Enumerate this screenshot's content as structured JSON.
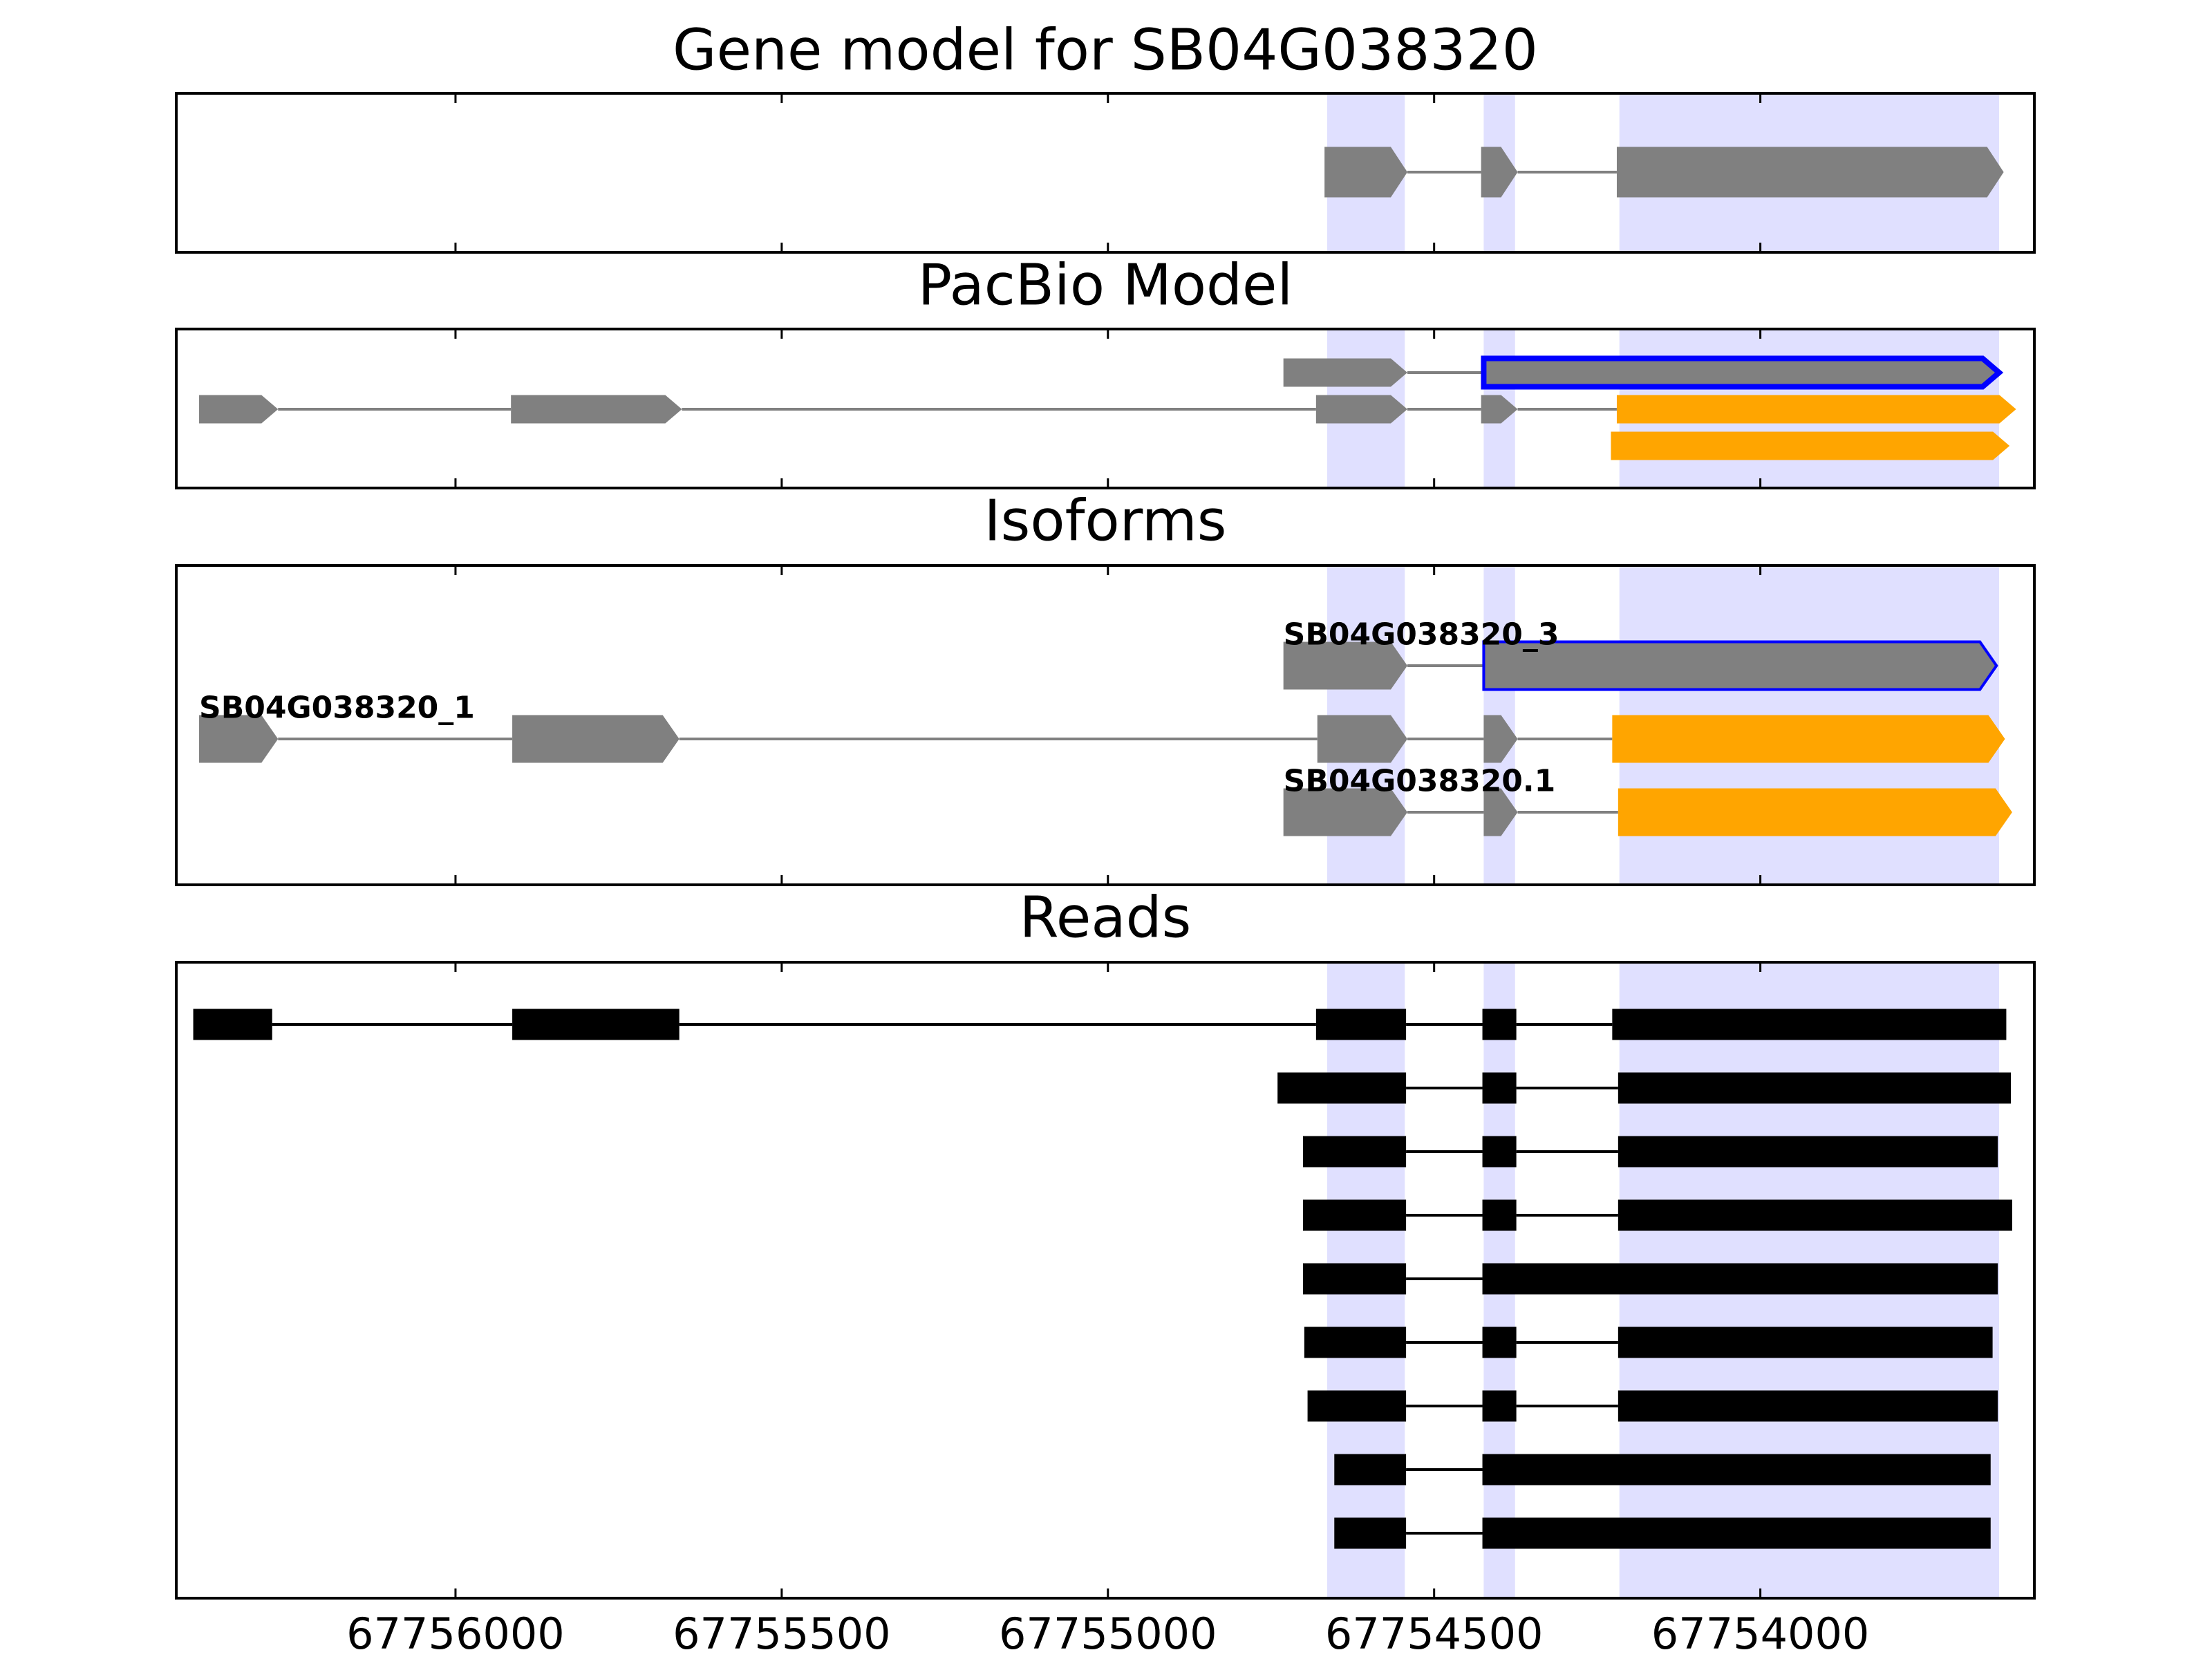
{
  "chart_data": {
    "type": "gene-model",
    "xlim": [
      67756428,
      67753580
    ],
    "xticks": [
      67756000,
      67755500,
      67755000,
      67754500,
      67754000
    ],
    "highlight_color": "#e0e0ff",
    "highlights": [
      [
        67754664,
        67754545
      ],
      [
        67754424,
        67754376
      ],
      [
        67754216,
        67753634
      ]
    ],
    "panels": [
      {
        "title": "Gene model for SB04G038320",
        "shape": "arrow",
        "intron_color": "#808080",
        "tracks": [
          {
            "exons": [
              {
                "range": [
                  67754668,
                  67754541
                ],
                "fill": "#808080"
              },
              {
                "range": [
                  67754428,
                  67754372
                ],
                "fill": "#808080"
              },
              {
                "range": [
                  67754220,
                  67753627
                ],
                "fill": "#808080"
              }
            ]
          }
        ]
      },
      {
        "title": "PacBio Model",
        "shape": "arrow",
        "intron_color": "#808080",
        "tracks": [
          {
            "exons": [
              {
                "range": [
                  67754731,
                  67754541
                ],
                "fill": "#808080"
              },
              {
                "range": [
                  67754424,
                  67753634
                ],
                "fill": "#808080",
                "edge": "#0000ff"
              }
            ]
          },
          {
            "exons": [
              {
                "range": [
                  67756393,
                  67756272
                ],
                "fill": "#808080"
              },
              {
                "range": [
                  67755915,
                  67755653
                ],
                "fill": "#808080"
              },
              {
                "range": [
                  67754681,
                  67754541
                ],
                "fill": "#808080"
              },
              {
                "range": [
                  67754428,
                  67754372
                ],
                "fill": "#808080"
              },
              {
                "range": [
                  67754220,
                  67753608
                ],
                "fill": "#ffa500"
              }
            ]
          },
          {
            "exons": [
              {
                "range": [
                  67754229,
                  67753618
                ],
                "fill": "#ffa500"
              }
            ]
          }
        ]
      },
      {
        "title": "Isoforms",
        "shape": "arrow",
        "intron_color": "#808080",
        "tracks": [
          {
            "label": "SB04G038320_3",
            "exons": [
              {
                "range": [
                  67754731,
                  67754541
                ],
                "fill": "#808080"
              },
              {
                "range": [
                  67754424,
                  67753638
                ],
                "fill": "#808080",
                "edge": "#0000ff"
              }
            ]
          },
          {
            "label": "SB04G038320_1",
            "exons": [
              {
                "range": [
                  67756393,
                  67756272
                ],
                "fill": "#808080"
              },
              {
                "range": [
                  67755913,
                  67755657
                ],
                "fill": "#808080"
              },
              {
                "range": [
                  67754679,
                  67754541
                ],
                "fill": "#808080"
              },
              {
                "range": [
                  67754424,
                  67754372
                ],
                "fill": "#808080"
              },
              {
                "range": [
                  67754227,
                  67753625
                ],
                "fill": "#ffa500"
              }
            ]
          },
          {
            "label": "SB04G038320.1",
            "exons": [
              {
                "range": [
                  67754731,
                  67754541
                ],
                "fill": "#808080"
              },
              {
                "range": [
                  67754424,
                  67754372
                ],
                "fill": "#808080"
              },
              {
                "range": [
                  67754218,
                  67753614
                ],
                "fill": "#ffa500"
              }
            ]
          }
        ]
      },
      {
        "title": "Reads",
        "shape": "box",
        "intron_color": "#000000",
        "tracks": [
          {
            "exons": [
              {
                "range": [
                  67756402,
                  67756281
                ],
                "fill": "#000000"
              },
              {
                "range": [
                  67755913,
                  67755657
                ],
                "fill": "#000000"
              },
              {
                "range": [
                  67754681,
                  67754543
                ],
                "fill": "#000000"
              },
              {
                "range": [
                  67754426,
                  67754374
                ],
                "fill": "#000000"
              },
              {
                "range": [
                  67754227,
                  67753623
                ],
                "fill": "#000000"
              }
            ]
          },
          {
            "exons": [
              {
                "range": [
                  67754740,
                  67754543
                ],
                "fill": "#000000"
              },
              {
                "range": [
                  67754426,
                  67754374
                ],
                "fill": "#000000"
              },
              {
                "range": [
                  67754218,
                  67753616
                ],
                "fill": "#000000"
              }
            ]
          },
          {
            "exons": [
              {
                "range": [
                  67754701,
                  67754543
                ],
                "fill": "#000000"
              },
              {
                "range": [
                  67754426,
                  67754374
                ],
                "fill": "#000000"
              },
              {
                "range": [
                  67754218,
                  67753636
                ],
                "fill": "#000000"
              }
            ]
          },
          {
            "exons": [
              {
                "range": [
                  67754701,
                  67754543
                ],
                "fill": "#000000"
              },
              {
                "range": [
                  67754426,
                  67754374
                ],
                "fill": "#000000"
              },
              {
                "range": [
                  67754218,
                  67753614
                ],
                "fill": "#000000"
              }
            ]
          },
          {
            "exons": [
              {
                "range": [
                  67754701,
                  67754543
                ],
                "fill": "#000000"
              },
              {
                "range": [
                  67754426,
                  67753636
                ],
                "fill": "#000000"
              }
            ]
          },
          {
            "exons": [
              {
                "range": [
                  67754699,
                  67754543
                ],
                "fill": "#000000"
              },
              {
                "range": [
                  67754426,
                  67754374
                ],
                "fill": "#000000"
              },
              {
                "range": [
                  67754218,
                  67753644
                ],
                "fill": "#000000"
              }
            ]
          },
          {
            "exons": [
              {
                "range": [
                  67754694,
                  67754543
                ],
                "fill": "#000000"
              },
              {
                "range": [
                  67754426,
                  67754374
                ],
                "fill": "#000000"
              },
              {
                "range": [
                  67754218,
                  67753636
                ],
                "fill": "#000000"
              }
            ]
          },
          {
            "exons": [
              {
                "range": [
                  67754653,
                  67754543
                ],
                "fill": "#000000"
              },
              {
                "range": [
                  67754426,
                  67753647
                ],
                "fill": "#000000"
              }
            ]
          },
          {
            "exons": [
              {
                "range": [
                  67754653,
                  67754543
                ],
                "fill": "#000000"
              },
              {
                "range": [
                  67754426,
                  67753647
                ],
                "fill": "#000000"
              }
            ]
          }
        ]
      }
    ]
  }
}
